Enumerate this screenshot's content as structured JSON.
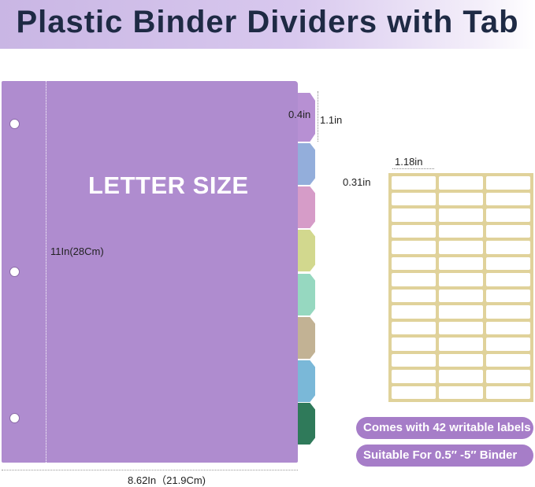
{
  "title": "Plastic Binder Dividers with Tab",
  "divider": {
    "text": "LETTER SIZE",
    "height_label": "11In(28Cm)",
    "width_label": "8.62In（21.9Cm)",
    "color": "#af8ccf"
  },
  "tab_dims": {
    "depth": "0.4in",
    "height": "1.1in"
  },
  "tab_colors": [
    "#b790d3",
    "#93aedb",
    "#d69cc8",
    "#d2d88e",
    "#96d8c0",
    "#c2b294",
    "#7ab8d8",
    "#2f7a5a"
  ],
  "labels": {
    "width": "1.18in",
    "height": "0.31in",
    "count": 42,
    "sheet_color": "#e0d29a"
  },
  "features": [
    "Comes with 42 writable labels",
    "Suitable For 0.5″ -5″  Binder"
  ]
}
